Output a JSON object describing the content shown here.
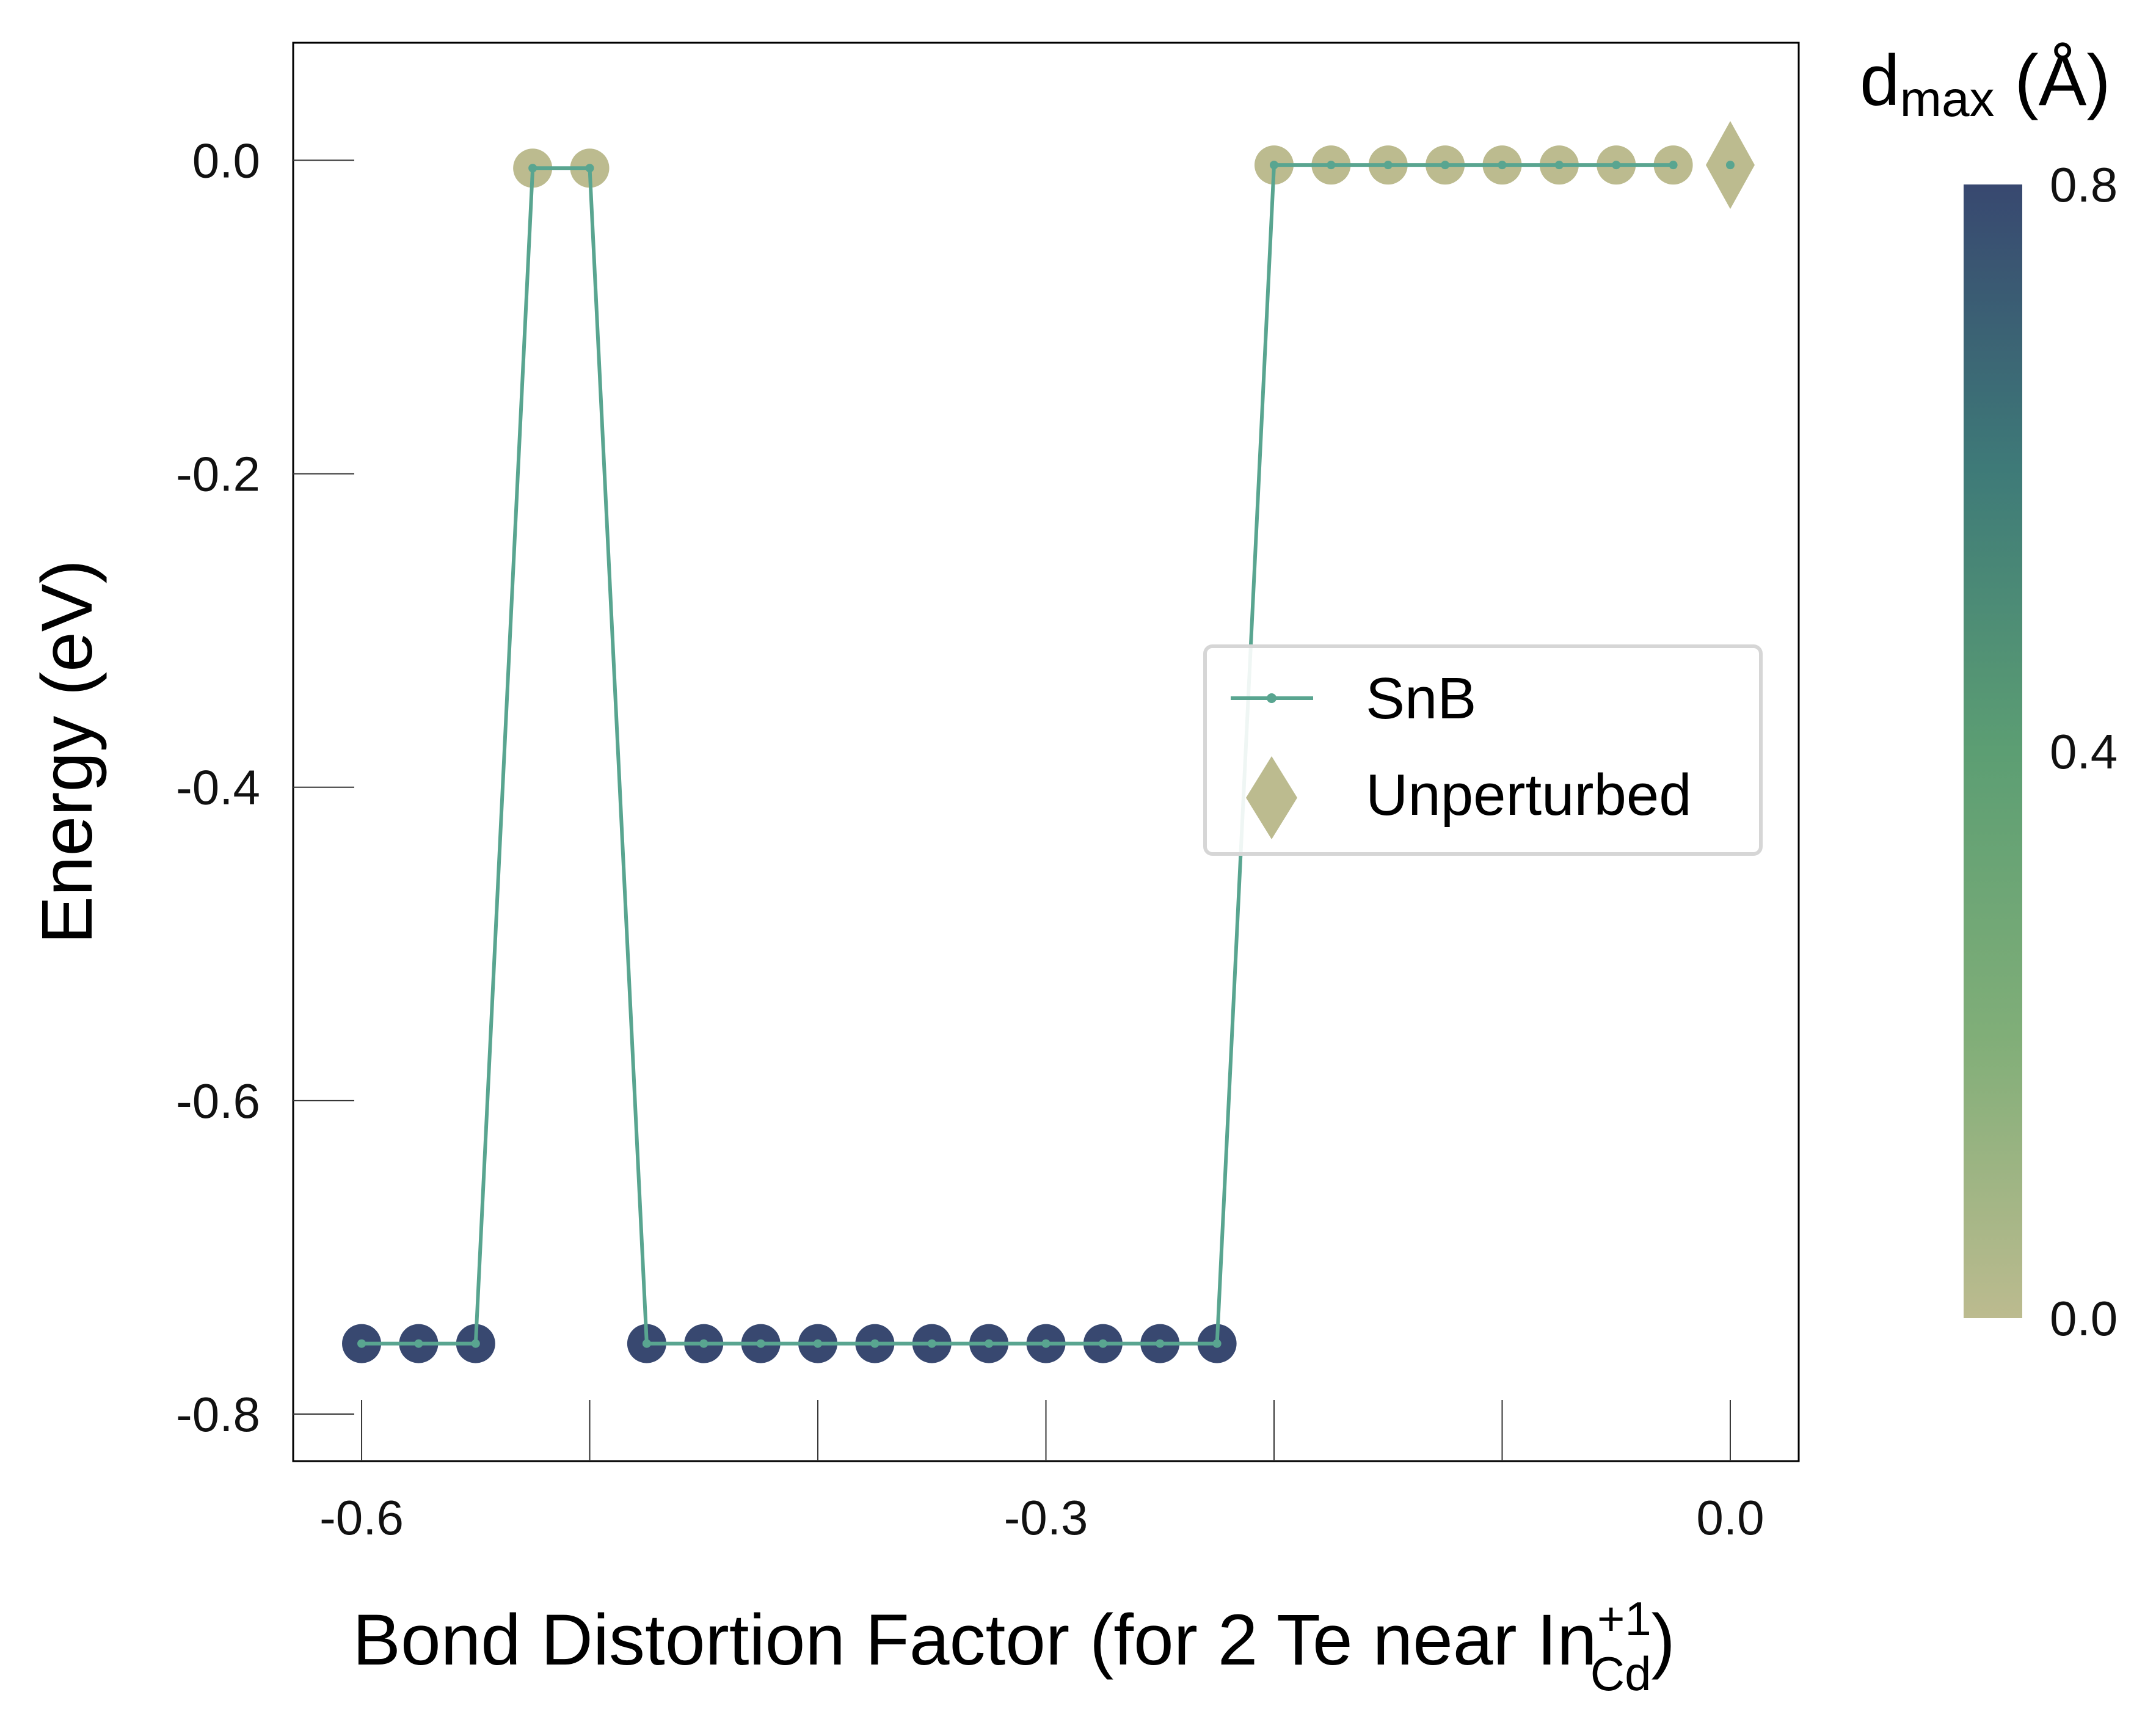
{
  "chart_data": {
    "type": "scatter",
    "xlabel": "Bond Distortion Factor (for 2 Te near In",
    "xlabel_sub": "Cd",
    "xlabel_sup": "+1",
    "xlabel_end": ")",
    "ylabel": "Energy (eV)",
    "xlim": [
      -0.63,
      0.03
    ],
    "ylim": [
      -0.83,
      0.075
    ],
    "xticks": [
      -0.6,
      -0.3,
      0.0
    ],
    "xtick_labels": [
      "-0.6",
      "-0.3",
      "0.0"
    ],
    "xminorticks": [
      -0.5,
      -0.4,
      -0.2,
      -0.1
    ],
    "yticks": [
      0.0,
      -0.2,
      -0.4,
      -0.6,
      -0.8
    ],
    "ytick_labels": [
      "0.0",
      "-0.2",
      "-0.4",
      "-0.6",
      "-0.8"
    ],
    "grid": false,
    "series": [
      {
        "name": "SnB",
        "line_color": "#59a590",
        "x": [
          -0.6,
          -0.575,
          -0.55,
          -0.525,
          -0.5,
          -0.475,
          -0.45,
          -0.425,
          -0.4,
          -0.375,
          -0.35,
          -0.325,
          -0.3,
          -0.275,
          -0.25,
          -0.225,
          -0.2,
          -0.175,
          -0.15,
          -0.125,
          -0.1,
          -0.075,
          -0.05,
          -0.025
        ],
        "y": [
          -0.755,
          -0.755,
          -0.755,
          -0.005,
          -0.005,
          -0.755,
          -0.755,
          -0.755,
          -0.755,
          -0.755,
          -0.755,
          -0.755,
          -0.755,
          -0.755,
          -0.755,
          -0.755,
          -0.003,
          -0.003,
          -0.003,
          -0.003,
          -0.003,
          -0.003,
          -0.003,
          -0.003
        ],
        "d_max": [
          0.8,
          0.8,
          0.8,
          0.0,
          0.0,
          0.8,
          0.8,
          0.8,
          0.8,
          0.8,
          0.8,
          0.8,
          0.8,
          0.8,
          0.8,
          0.8,
          0.0,
          0.0,
          0.0,
          0.0,
          0.0,
          0.0,
          0.0,
          0.0
        ]
      },
      {
        "name": "Unperturbed",
        "marker": "diamond",
        "x": [
          0.0
        ],
        "y": [
          -0.003
        ],
        "d_max": [
          0.0
        ]
      }
    ],
    "legend": {
      "placement": "center-right",
      "entries": [
        "SnB",
        "Unperturbed"
      ]
    },
    "colorbar": {
      "label": "d",
      "label_sub": "max",
      "label_end": " (Å)",
      "ticks": [
        "0.8",
        "0.4",
        "0.0"
      ],
      "tick_values": [
        0.8,
        0.4,
        0.0
      ],
      "range": [
        0.0,
        0.8
      ],
      "colors": [
        "#bcbb8f",
        "#80ae78",
        "#5c9e73",
        "#3e7a78",
        "#384870"
      ]
    }
  }
}
